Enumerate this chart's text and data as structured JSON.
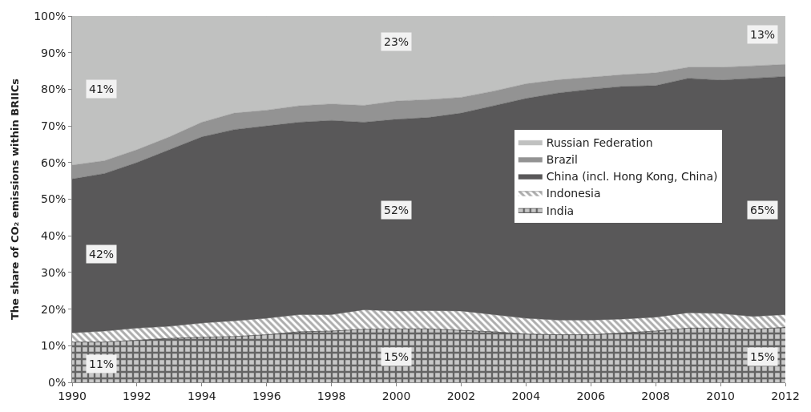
{
  "chart_data": {
    "type": "area",
    "stacked": true,
    "ylabel": "The share of CO₂ emissions within BRIICs",
    "x": [
      1990,
      1991,
      1992,
      1993,
      1994,
      1995,
      1996,
      1997,
      1998,
      1999,
      2000,
      2001,
      2002,
      2003,
      2004,
      2005,
      2006,
      2007,
      2008,
      2009,
      2010,
      2011,
      2012
    ],
    "series": [
      {
        "name": "India",
        "color": "#000000",
        "values": [
          11,
          11,
          11.5,
          12,
          12.3,
          12.5,
          13,
          13.8,
          14,
          14.5,
          14.6,
          14.6,
          14.2,
          13.8,
          13.2,
          13,
          13,
          13.5,
          14,
          14.8,
          14.8,
          14.5,
          15
        ]
      },
      {
        "name": "Indonesia",
        "color": "#5a5a5a",
        "values": [
          2.5,
          3,
          3.3,
          3.3,
          3.9,
          4.3,
          4.5,
          4.7,
          4.5,
          5.3,
          4.9,
          5.0,
          5.3,
          4.7,
          4.3,
          4,
          4,
          3.8,
          3.8,
          4.2,
          4,
          3.5,
          3.5
        ]
      },
      {
        "name": "China (incl. Hong Kong, China)",
        "color": "#595859",
        "values": [
          42,
          43,
          45.2,
          48.2,
          50.8,
          52.2,
          52.5,
          52.5,
          53,
          51.2,
          52.3,
          52.7,
          54,
          57,
          60,
          62,
          63,
          63.5,
          63.2,
          64,
          63.7,
          65,
          65
        ]
      },
      {
        "name": "Brazil",
        "color": "#939393",
        "values": [
          3.8,
          3.5,
          3.5,
          3.5,
          4,
          4.5,
          4.3,
          4.5,
          4.5,
          4.6,
          5,
          4.9,
          4.3,
          4,
          4,
          3.6,
          3.3,
          3.2,
          3.5,
          3,
          3.5,
          3.4,
          3.3
        ]
      },
      {
        "name": "Russian Federation",
        "color": "#c0c1c0",
        "values": [
          40.7,
          39.5,
          36.5,
          33,
          29,
          26.5,
          25.7,
          24.5,
          24,
          24.4,
          23.2,
          22.8,
          22.2,
          20.5,
          18.5,
          17.4,
          16.7,
          16,
          15.5,
          14,
          14,
          13.6,
          13.2
        ]
      }
    ],
    "annotations": [
      {
        "text": "41%",
        "x": 1990.9,
        "y": 80
      },
      {
        "text": "42%",
        "x": 1990.9,
        "y": 35
      },
      {
        "text": "11%",
        "x": 1990.9,
        "y": 5
      },
      {
        "text": "23%",
        "x": 2000,
        "y": 93
      },
      {
        "text": "52%",
        "x": 2000,
        "y": 47
      },
      {
        "text": "15%",
        "x": 2000,
        "y": 7
      },
      {
        "text": "13%",
        "x": 2011.3,
        "y": 95
      },
      {
        "text": "65%",
        "x": 2011.3,
        "y": 47
      },
      {
        "text": "15%",
        "x": 2011.3,
        "y": 7
      }
    ],
    "xlim": [
      1990,
      2012
    ],
    "xticks": [
      1990,
      1992,
      1994,
      1996,
      1998,
      2000,
      2002,
      2004,
      2006,
      2008,
      2010,
      2012
    ],
    "ylim": [
      0,
      100
    ],
    "yticks": [
      {
        "value": 0,
        "label": "0%"
      },
      {
        "value": 10,
        "label": "10%"
      },
      {
        "value": 20,
        "label": "20%"
      },
      {
        "value": 30,
        "label": "30%"
      },
      {
        "value": 40,
        "label": "40%"
      },
      {
        "value": 50,
        "label": "50%"
      },
      {
        "value": 60,
        "label": "60%"
      },
      {
        "value": 70,
        "label": "70%"
      },
      {
        "value": 80,
        "label": "80%"
      },
      {
        "value": 90,
        "label": "90%"
      },
      {
        "value": 100,
        "label": "100%"
      }
    ],
    "legend": "right"
  }
}
